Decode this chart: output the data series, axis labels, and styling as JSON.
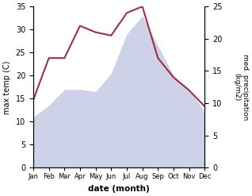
{
  "months": [
    "Jan",
    "Feb",
    "Mar",
    "Apr",
    "May",
    "Jun",
    "Jul",
    "Aug",
    "Sep",
    "Oct",
    "Nov",
    "Dec"
  ],
  "temp": [
    11,
    13.5,
    17,
    17,
    16.5,
    20.5,
    29,
    33,
    26.5,
    20,
    17,
    12
  ],
  "precip": [
    10.5,
    17,
    17,
    22,
    21,
    20.5,
    24,
    25,
    17,
    14,
    12,
    9.5
  ],
  "temp_ylim": [
    0,
    35
  ],
  "precip_ylim": [
    0,
    25
  ],
  "temp_yticks": [
    0,
    5,
    10,
    15,
    20,
    25,
    30,
    35
  ],
  "precip_yticks": [
    0,
    5,
    10,
    15,
    20,
    25
  ],
  "xlabel": "date (month)",
  "ylabel_left": "max temp (C)",
  "ylabel_right": "med. precipitation\n(kg/m2)",
  "fill_color": "#b8c0e0",
  "fill_alpha": 0.7,
  "line_color": "#a03040",
  "line_width": 1.5,
  "bg_color": "#ffffff"
}
